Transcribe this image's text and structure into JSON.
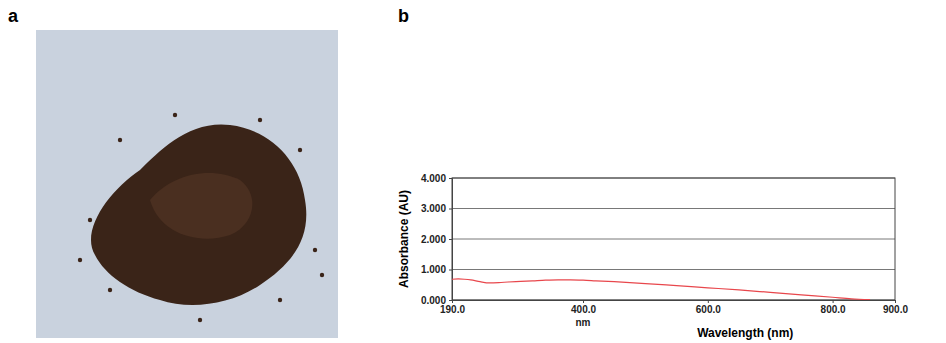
{
  "panel_a": {
    "label": "a"
  },
  "chart_data": {
    "type": "line",
    "panel_label": "b",
    "x_unit": "nm",
    "x_label": "Wavelength (nm)",
    "y_label": "Absorbance (AU)",
    "x": [
      190,
      200,
      210,
      220,
      235,
      250,
      265,
      280,
      300,
      320,
      340,
      360,
      380,
      400,
      420,
      450,
      500,
      550,
      600,
      650,
      700,
      750,
      800,
      830,
      860
    ],
    "values": [
      0.68,
      0.69,
      0.68,
      0.66,
      0.6,
      0.56,
      0.57,
      0.59,
      0.61,
      0.63,
      0.65,
      0.66,
      0.66,
      0.65,
      0.63,
      0.6,
      0.54,
      0.47,
      0.4,
      0.33,
      0.25,
      0.17,
      0.09,
      0.04,
      0.01
    ],
    "color": "#e8474c",
    "xlim": [
      190,
      900
    ],
    "xticks": [
      {
        "value": 190,
        "label": "190.0"
      },
      {
        "value": 400,
        "label": "400.0"
      },
      {
        "value": 600,
        "label": "600.0"
      },
      {
        "value": 800,
        "label": "800.0"
      },
      {
        "value": 900,
        "label": "900.0"
      }
    ],
    "ylim": [
      0,
      4
    ],
    "yticks": [
      {
        "value": 0,
        "label": "0.000"
      },
      {
        "value": 1,
        "label": "1.000"
      },
      {
        "value": 2,
        "label": "2.000"
      },
      {
        "value": 3,
        "label": "3.000"
      },
      {
        "value": 4,
        "label": "4.000"
      }
    ],
    "grid": true
  }
}
